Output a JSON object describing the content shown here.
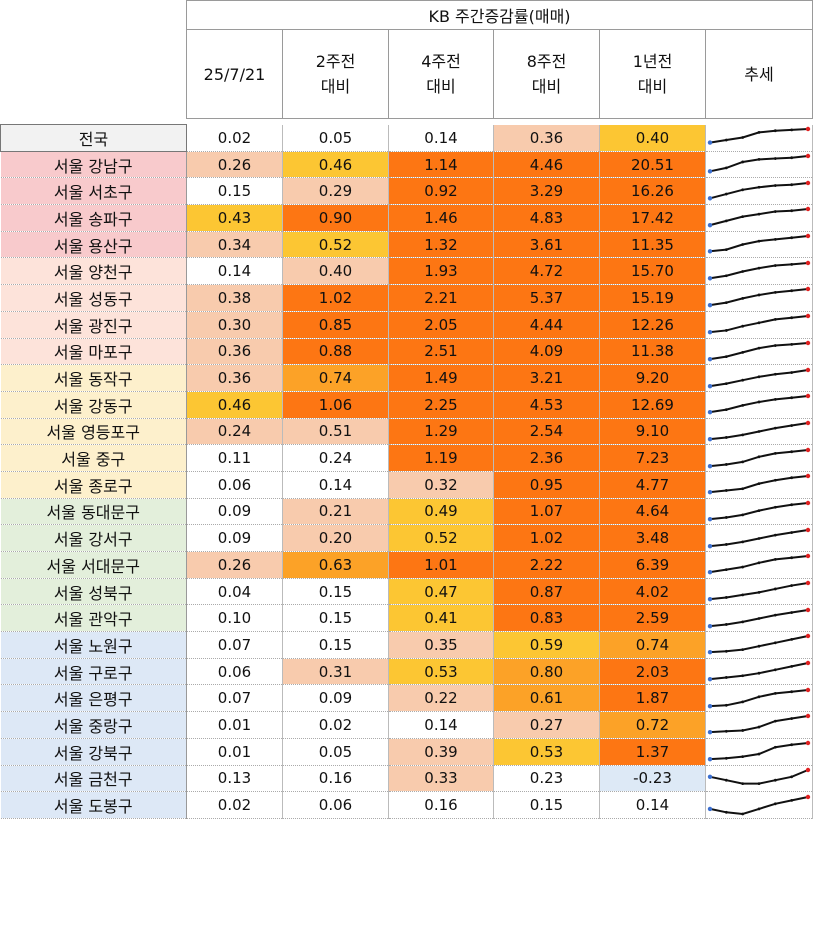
{
  "header": {
    "caption": "KB 주간증감률(매매)",
    "columns": [
      {
        "line1": "25/7/21",
        "line2": ""
      },
      {
        "line1": "2주전",
        "line2": "대비"
      },
      {
        "line1": "4주전",
        "line2": "대비"
      },
      {
        "line1": "8주전",
        "line2": "대비"
      },
      {
        "line1": "1년전",
        "line2": "대비"
      },
      {
        "line1": "추세",
        "line2": ""
      }
    ]
  },
  "colors": {
    "white": "#ffffff",
    "peach": "#f8cbad",
    "yellow": "#fcc633",
    "light_orange": "#fca227",
    "orange": "#fd7613",
    "blue_neg": "#dde9f6",
    "group_national": "#f2f2f2",
    "group_pink": "#f8cacc",
    "group_lightpink": "#fde3da",
    "group_cream": "#fdf0cc",
    "group_green": "#e3efdb",
    "group_blue": "#dde8f6"
  },
  "rows": [
    {
      "region": "전국",
      "group": "group_national",
      "values": [
        "0.02",
        "0.05",
        "0.14",
        "0.36",
        "0.40"
      ],
      "colors": [
        "white",
        "white",
        "white",
        "peach",
        "yellow"
      ],
      "trend": [
        0.2,
        0.35,
        0.5,
        0.8,
        0.9,
        0.95,
        1.0
      ]
    },
    {
      "region": "서울 강남구",
      "group": "group_pink",
      "values": [
        "0.26",
        "0.46",
        "1.14",
        "4.46",
        "20.51"
      ],
      "colors": [
        "peach",
        "yellow",
        "orange",
        "orange",
        "orange"
      ],
      "trend": [
        0.1,
        0.3,
        0.65,
        0.8,
        0.85,
        0.9,
        1.0
      ]
    },
    {
      "region": "서울 서초구",
      "group": "group_pink",
      "values": [
        "0.15",
        "0.29",
        "0.92",
        "3.29",
        "16.26"
      ],
      "colors": [
        "white",
        "peach",
        "orange",
        "orange",
        "orange"
      ],
      "trend": [
        0.1,
        0.35,
        0.6,
        0.75,
        0.85,
        0.9,
        1.0
      ]
    },
    {
      "region": "서울 송파구",
      "group": "group_pink",
      "values": [
        "0.43",
        "0.90",
        "1.46",
        "4.83",
        "17.42"
      ],
      "colors": [
        "yellow",
        "orange",
        "orange",
        "orange",
        "orange"
      ],
      "trend": [
        0.05,
        0.3,
        0.55,
        0.7,
        0.85,
        0.9,
        1.0
      ]
    },
    {
      "region": "서울 용산구",
      "group": "group_pink",
      "values": [
        "0.34",
        "0.52",
        "1.32",
        "3.61",
        "11.35"
      ],
      "colors": [
        "peach",
        "yellow",
        "orange",
        "orange",
        "orange"
      ],
      "trend": [
        0.1,
        0.2,
        0.5,
        0.7,
        0.8,
        0.9,
        1.0
      ]
    },
    {
      "region": "서울 양천구",
      "group": "group_lightpink",
      "values": [
        "0.14",
        "0.40",
        "1.93",
        "4.72",
        "15.70"
      ],
      "colors": [
        "white",
        "peach",
        "orange",
        "orange",
        "orange"
      ],
      "trend": [
        0.1,
        0.25,
        0.5,
        0.7,
        0.85,
        0.92,
        1.0
      ]
    },
    {
      "region": "서울 성동구",
      "group": "group_lightpink",
      "values": [
        "0.38",
        "1.02",
        "2.21",
        "5.37",
        "15.19"
      ],
      "colors": [
        "peach",
        "orange",
        "orange",
        "orange",
        "orange"
      ],
      "trend": [
        0.05,
        0.2,
        0.45,
        0.65,
        0.8,
        0.9,
        1.0
      ]
    },
    {
      "region": "서울 광진구",
      "group": "group_lightpink",
      "values": [
        "0.30",
        "0.85",
        "2.05",
        "4.44",
        "12.26"
      ],
      "colors": [
        "peach",
        "orange",
        "orange",
        "orange",
        "orange"
      ],
      "trend": [
        0.05,
        0.15,
        0.4,
        0.6,
        0.8,
        0.9,
        1.0
      ]
    },
    {
      "region": "서울 마포구",
      "group": "group_lightpink",
      "values": [
        "0.36",
        "0.88",
        "2.51",
        "4.09",
        "11.38"
      ],
      "colors": [
        "peach",
        "orange",
        "orange",
        "orange",
        "orange"
      ],
      "trend": [
        0.05,
        0.2,
        0.45,
        0.7,
        0.85,
        0.92,
        1.0
      ]
    },
    {
      "region": "서울 동작구",
      "group": "group_cream",
      "values": [
        "0.36",
        "0.74",
        "1.49",
        "3.21",
        "9.20"
      ],
      "colors": [
        "peach",
        "light_orange",
        "orange",
        "orange",
        "orange"
      ],
      "trend": [
        0.05,
        0.2,
        0.4,
        0.6,
        0.75,
        0.85,
        1.0
      ]
    },
    {
      "region": "서울 강동구",
      "group": "group_cream",
      "values": [
        "0.46",
        "1.06",
        "2.25",
        "4.53",
        "12.69"
      ],
      "colors": [
        "yellow",
        "orange",
        "orange",
        "orange",
        "orange"
      ],
      "trend": [
        0.05,
        0.2,
        0.45,
        0.65,
        0.8,
        0.9,
        1.0
      ]
    },
    {
      "region": "서울 영등포구",
      "group": "group_cream",
      "values": [
        "0.24",
        "0.51",
        "1.29",
        "2.54",
        "9.10"
      ],
      "colors": [
        "peach",
        "peach",
        "orange",
        "orange",
        "orange"
      ],
      "trend": [
        0.05,
        0.15,
        0.3,
        0.5,
        0.7,
        0.85,
        1.0
      ]
    },
    {
      "region": "서울 중구",
      "group": "group_cream",
      "values": [
        "0.11",
        "0.24",
        "1.19",
        "2.36",
        "7.23"
      ],
      "colors": [
        "white",
        "white",
        "orange",
        "orange",
        "orange"
      ],
      "trend": [
        0.05,
        0.15,
        0.3,
        0.6,
        0.8,
        0.9,
        1.0
      ]
    },
    {
      "region": "서울 종로구",
      "group": "group_cream",
      "values": [
        "0.06",
        "0.14",
        "0.32",
        "0.95",
        "4.77"
      ],
      "colors": [
        "white",
        "white",
        "peach",
        "orange",
        "orange"
      ],
      "trend": [
        0.05,
        0.15,
        0.25,
        0.55,
        0.75,
        0.9,
        1.0
      ]
    },
    {
      "region": "서울 동대문구",
      "group": "group_green",
      "values": [
        "0.09",
        "0.21",
        "0.49",
        "1.07",
        "4.64"
      ],
      "colors": [
        "white",
        "peach",
        "yellow",
        "orange",
        "orange"
      ],
      "trend": [
        0.05,
        0.15,
        0.3,
        0.55,
        0.75,
        0.9,
        1.0
      ]
    },
    {
      "region": "서울 강서구",
      "group": "group_green",
      "values": [
        "0.09",
        "0.20",
        "0.52",
        "1.02",
        "3.48"
      ],
      "colors": [
        "white",
        "peach",
        "yellow",
        "orange",
        "orange"
      ],
      "trend": [
        0.05,
        0.15,
        0.3,
        0.5,
        0.7,
        0.85,
        1.0
      ]
    },
    {
      "region": "서울 서대문구",
      "group": "group_green",
      "values": [
        "0.26",
        "0.63",
        "1.01",
        "2.22",
        "6.39"
      ],
      "colors": [
        "peach",
        "light_orange",
        "orange",
        "orange",
        "orange"
      ],
      "trend": [
        0.05,
        0.2,
        0.35,
        0.6,
        0.8,
        0.9,
        1.0
      ]
    },
    {
      "region": "서울 성북구",
      "group": "group_green",
      "values": [
        "0.04",
        "0.15",
        "0.47",
        "0.87",
        "4.02"
      ],
      "colors": [
        "white",
        "white",
        "yellow",
        "orange",
        "orange"
      ],
      "trend": [
        0.05,
        0.15,
        0.3,
        0.45,
        0.65,
        0.85,
        1.0
      ]
    },
    {
      "region": "서울 관악구",
      "group": "group_green",
      "values": [
        "0.10",
        "0.15",
        "0.41",
        "0.83",
        "2.59"
      ],
      "colors": [
        "white",
        "white",
        "yellow",
        "orange",
        "orange"
      ],
      "trend": [
        0.05,
        0.15,
        0.3,
        0.5,
        0.7,
        0.85,
        1.0
      ]
    },
    {
      "region": "서울 노원구",
      "group": "group_blue",
      "values": [
        "0.07",
        "0.15",
        "0.35",
        "0.59",
        "0.74"
      ],
      "colors": [
        "white",
        "white",
        "peach",
        "yellow",
        "light_orange"
      ],
      "trend": [
        0.05,
        0.1,
        0.2,
        0.4,
        0.6,
        0.8,
        1.0
      ]
    },
    {
      "region": "서울 구로구",
      "group": "group_blue",
      "values": [
        "0.06",
        "0.31",
        "0.53",
        "0.80",
        "2.03"
      ],
      "colors": [
        "white",
        "peach",
        "yellow",
        "light_orange",
        "orange"
      ],
      "trend": [
        0.05,
        0.15,
        0.25,
        0.4,
        0.6,
        0.8,
        1.0
      ]
    },
    {
      "region": "서울 은평구",
      "group": "group_blue",
      "values": [
        "0.07",
        "0.09",
        "0.22",
        "0.61",
        "1.87"
      ],
      "colors": [
        "white",
        "white",
        "peach",
        "light_orange",
        "orange"
      ],
      "trend": [
        0.05,
        0.1,
        0.3,
        0.6,
        0.8,
        0.9,
        1.0
      ]
    },
    {
      "region": "서울 중랑구",
      "group": "group_blue",
      "values": [
        "0.01",
        "0.02",
        "0.14",
        "0.27",
        "0.72"
      ],
      "colors": [
        "white",
        "white",
        "white",
        "peach",
        "light_orange"
      ],
      "trend": [
        0.05,
        0.1,
        0.15,
        0.35,
        0.7,
        0.85,
        1.0
      ]
    },
    {
      "region": "서울 강북구",
      "group": "group_blue",
      "values": [
        "0.01",
        "0.05",
        "0.39",
        "0.53",
        "1.37"
      ],
      "colors": [
        "white",
        "white",
        "peach",
        "yellow",
        "orange"
      ],
      "trend": [
        0.05,
        0.1,
        0.2,
        0.35,
        0.75,
        0.9,
        1.0
      ]
    },
    {
      "region": "서울 금천구",
      "group": "group_blue",
      "values": [
        "0.13",
        "0.16",
        "0.33",
        "0.23",
        "-0.23"
      ],
      "colors": [
        "white",
        "white",
        "peach",
        "white",
        "blue_neg"
      ],
      "trend": [
        0.6,
        0.4,
        0.2,
        0.2,
        0.4,
        0.6,
        1.0
      ]
    },
    {
      "region": "서울 도봉구",
      "group": "group_blue",
      "values": [
        "0.02",
        "0.06",
        "0.16",
        "0.15",
        "0.14"
      ],
      "colors": [
        "white",
        "white",
        "white",
        "white",
        "white"
      ],
      "trend": [
        0.3,
        0.1,
        0.0,
        0.3,
        0.6,
        0.8,
        1.0
      ]
    }
  ]
}
